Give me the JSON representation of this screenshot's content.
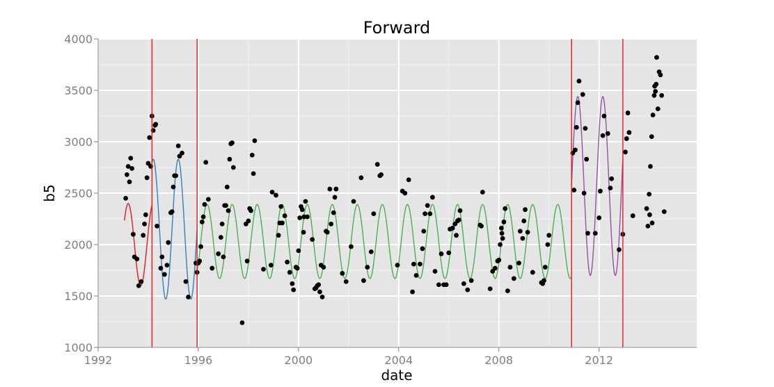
{
  "chart_data": {
    "type": "scatter",
    "title": "Forward",
    "xlabel": "date",
    "ylabel": "b5",
    "xlim": [
      1992,
      2015.9
    ],
    "ylim": [
      1000,
      4000
    ],
    "xticks": [
      "1992",
      "1996",
      "2000",
      "2004",
      "2008",
      "2012"
    ],
    "yticks": [
      "1000",
      "1500",
      "2000",
      "2500",
      "3000",
      "3500",
      "4000"
    ],
    "grid": true,
    "background": "#e5e5e5",
    "colors": {
      "points": "#000000",
      "breaks": "#e41a1c",
      "series": [
        "#e41a1c",
        "#377eb8",
        "#4daf4a",
        "#984ea3"
      ]
    },
    "breakpoints": [
      1994.15,
      1995.95,
      2010.9,
      2012.95
    ],
    "fitted_segments": [
      {
        "start": 1993.05,
        "end": 1994.15,
        "mean": 2000,
        "amp": 400,
        "peak": 1994.2
      },
      {
        "start": 1994.15,
        "end": 1995.95,
        "mean": 2150,
        "amp": 680,
        "peak": 1994.2
      },
      {
        "start": 1995.95,
        "end": 2010.9,
        "mean": 2030,
        "amp": 360,
        "peak": 1996.35
      },
      {
        "start": 2010.9,
        "end": 2012.95,
        "mean": 2570,
        "amp": 870,
        "peak": 2011.15
      }
    ],
    "points": [
      [
        1993.1,
        2450
      ],
      [
        1993.15,
        2680
      ],
      [
        1993.2,
        2760
      ],
      [
        1993.25,
        2610
      ],
      [
        1993.3,
        2840
      ],
      [
        1993.35,
        2740
      ],
      [
        1993.4,
        2100
      ],
      [
        1993.45,
        1880
      ],
      [
        1993.55,
        1860
      ],
      [
        1993.62,
        1600
      ],
      [
        1993.72,
        1640
      ],
      [
        1993.8,
        2090
      ],
      [
        1993.85,
        2200
      ],
      [
        1993.9,
        2290
      ],
      [
        1993.95,
        2650
      ],
      [
        1994.0,
        2790
      ],
      [
        1994.05,
        3040
      ],
      [
        1994.1,
        2760
      ],
      [
        1994.15,
        3250
      ],
      [
        1994.2,
        3110
      ],
      [
        1994.27,
        3160
      ],
      [
        1994.3,
        3170
      ],
      [
        1994.35,
        2180
      ],
      [
        1994.5,
        1770
      ],
      [
        1994.55,
        1880
      ],
      [
        1994.65,
        1710
      ],
      [
        1994.75,
        1800
      ],
      [
        1994.8,
        2020
      ],
      [
        1994.9,
        2310
      ],
      [
        1994.95,
        2320
      ],
      [
        1995.0,
        2560
      ],
      [
        1995.05,
        2670
      ],
      [
        1995.1,
        2670
      ],
      [
        1995.2,
        2960
      ],
      [
        1995.25,
        2860
      ],
      [
        1995.35,
        2890
      ],
      [
        1995.5,
        1640
      ],
      [
        1995.6,
        1490
      ],
      [
        1995.9,
        1820
      ],
      [
        1995.95,
        1730
      ],
      [
        1996.0,
        1820
      ],
      [
        1996.05,
        1840
      ],
      [
        1996.1,
        1980
      ],
      [
        1996.15,
        2220
      ],
      [
        1996.2,
        2270
      ],
      [
        1996.25,
        2390
      ],
      [
        1996.3,
        2800
      ],
      [
        1996.4,
        2440
      ],
      [
        1996.55,
        1770
      ],
      [
        1996.8,
        1910
      ],
      [
        1996.9,
        2070
      ],
      [
        1996.95,
        2200
      ],
      [
        1997.0,
        1880
      ],
      [
        1997.05,
        2380
      ],
      [
        1997.1,
        2380
      ],
      [
        1997.15,
        2560
      ],
      [
        1997.2,
        2330
      ],
      [
        1997.25,
        2830
      ],
      [
        1997.3,
        2980
      ],
      [
        1997.35,
        2990
      ],
      [
        1997.4,
        2750
      ],
      [
        1997.75,
        1240
      ],
      [
        1997.9,
        2200
      ],
      [
        1997.95,
        1840
      ],
      [
        1998.0,
        2230
      ],
      [
        1998.05,
        2350
      ],
      [
        1998.1,
        2330
      ],
      [
        1998.15,
        2870
      ],
      [
        1998.2,
        2690
      ],
      [
        1998.25,
        3010
      ],
      [
        1998.6,
        1760
      ],
      [
        1998.9,
        1800
      ],
      [
        1998.95,
        2510
      ],
      [
        1999.1,
        2480
      ],
      [
        1999.2,
        2090
      ],
      [
        1999.25,
        2210
      ],
      [
        1999.3,
        2370
      ],
      [
        1999.35,
        2210
      ],
      [
        1999.45,
        2280
      ],
      [
        1999.55,
        1830
      ],
      [
        1999.65,
        1730
      ],
      [
        1999.75,
        1620
      ],
      [
        1999.8,
        1560
      ],
      [
        1999.9,
        1780
      ],
      [
        1999.95,
        1770
      ],
      [
        2000.0,
        1940
      ],
      [
        2000.05,
        2260
      ],
      [
        2000.1,
        2370
      ],
      [
        2000.15,
        2340
      ],
      [
        2000.2,
        2120
      ],
      [
        2000.22,
        2270
      ],
      [
        2000.28,
        2420
      ],
      [
        2000.35,
        2270
      ],
      [
        2000.55,
        2050
      ],
      [
        2000.65,
        1570
      ],
      [
        2000.7,
        1580
      ],
      [
        2000.75,
        1600
      ],
      [
        2000.8,
        1610
      ],
      [
        2000.85,
        1540
      ],
      [
        2000.9,
        1800
      ],
      [
        2000.95,
        1490
      ],
      [
        2001.0,
        1780
      ],
      [
        2001.1,
        2130
      ],
      [
        2001.15,
        2120
      ],
      [
        2001.25,
        2540
      ],
      [
        2001.3,
        2200
      ],
      [
        2001.4,
        2310
      ],
      [
        2001.45,
        2460
      ],
      [
        2001.5,
        2540
      ],
      [
        2001.75,
        1720
      ],
      [
        2001.9,
        1640
      ],
      [
        2002.1,
        1980
      ],
      [
        2002.2,
        2420
      ],
      [
        2002.5,
        2650
      ],
      [
        2002.6,
        1650
      ],
      [
        2002.75,
        1780
      ],
      [
        2002.9,
        1930
      ],
      [
        2003.0,
        2300
      ],
      [
        2003.15,
        2780
      ],
      [
        2003.25,
        2670
      ],
      [
        2003.3,
        2680
      ],
      [
        2003.95,
        1800
      ],
      [
        2004.15,
        2520
      ],
      [
        2004.25,
        2500
      ],
      [
        2004.4,
        2630
      ],
      [
        2004.55,
        1540
      ],
      [
        2004.6,
        1810
      ],
      [
        2004.7,
        1700
      ],
      [
        2004.85,
        1810
      ],
      [
        2004.95,
        1960
      ],
      [
        2005.0,
        2130
      ],
      [
        2005.05,
        2300
      ],
      [
        2005.15,
        2380
      ],
      [
        2005.25,
        2300
      ],
      [
        2005.35,
        2460
      ],
      [
        2005.45,
        1740
      ],
      [
        2005.6,
        1610
      ],
      [
        2005.7,
        1910
      ],
      [
        2005.8,
        1610
      ],
      [
        2005.9,
        1610
      ],
      [
        2006.0,
        1920
      ],
      [
        2006.05,
        2150
      ],
      [
        2006.15,
        2160
      ],
      [
        2006.25,
        2200
      ],
      [
        2006.3,
        2090
      ],
      [
        2006.35,
        2230
      ],
      [
        2006.4,
        2240
      ],
      [
        2006.45,
        2330
      ],
      [
        2006.6,
        1620
      ],
      [
        2006.75,
        1560
      ],
      [
        2006.9,
        1650
      ],
      [
        2007.25,
        2190
      ],
      [
        2007.3,
        2180
      ],
      [
        2007.35,
        2510
      ],
      [
        2007.65,
        1570
      ],
      [
        2007.75,
        1740
      ],
      [
        2007.85,
        1770
      ],
      [
        2007.95,
        1840
      ],
      [
        2008.0,
        1850
      ],
      [
        2008.05,
        2000
      ],
      [
        2008.1,
        2160
      ],
      [
        2008.12,
        2110
      ],
      [
        2008.15,
        2060
      ],
      [
        2008.2,
        2220
      ],
      [
        2008.25,
        2350
      ],
      [
        2008.35,
        1550
      ],
      [
        2008.45,
        1780
      ],
      [
        2008.6,
        1670
      ],
      [
        2008.8,
        1820
      ],
      [
        2008.85,
        2130
      ],
      [
        2008.95,
        2060
      ],
      [
        2009.0,
        2230
      ],
      [
        2009.05,
        2340
      ],
      [
        2009.15,
        2120
      ],
      [
        2009.35,
        1730
      ],
      [
        2009.7,
        1630
      ],
      [
        2009.75,
        1620
      ],
      [
        2009.8,
        1650
      ],
      [
        2009.85,
        1780
      ],
      [
        2009.95,
        2000
      ],
      [
        2010.0,
        2090
      ],
      [
        2010.95,
        2890
      ],
      [
        2011.0,
        2530
      ],
      [
        2011.05,
        2920
      ],
      [
        2011.1,
        3140
      ],
      [
        2011.15,
        3380
      ],
      [
        2011.2,
        3590
      ],
      [
        2011.35,
        3460
      ],
      [
        2011.4,
        2500
      ],
      [
        2011.45,
        3130
      ],
      [
        2011.5,
        2830
      ],
      [
        2011.55,
        2110
      ],
      [
        2011.85,
        2110
      ],
      [
        2012.0,
        2260
      ],
      [
        2012.05,
        2520
      ],
      [
        2012.15,
        3060
      ],
      [
        2012.2,
        3250
      ],
      [
        2012.35,
        3080
      ],
      [
        2012.45,
        2550
      ],
      [
        2012.5,
        2640
      ],
      [
        2012.8,
        1950
      ],
      [
        2012.95,
        2100
      ],
      [
        2013.05,
        2900
      ],
      [
        2013.1,
        3030
      ],
      [
        2013.15,
        3280
      ],
      [
        2013.2,
        3090
      ],
      [
        2013.35,
        2280
      ],
      [
        2013.9,
        2350
      ],
      [
        2013.95,
        2180
      ],
      [
        2014.0,
        2490
      ],
      [
        2014.02,
        2290
      ],
      [
        2014.05,
        2760
      ],
      [
        2014.1,
        3050
      ],
      [
        2014.12,
        2210
      ],
      [
        2014.15,
        3260
      ],
      [
        2014.2,
        3450
      ],
      [
        2014.22,
        3540
      ],
      [
        2014.25,
        3490
      ],
      [
        2014.28,
        3560
      ],
      [
        2014.3,
        3820
      ],
      [
        2014.35,
        3320
      ],
      [
        2014.4,
        3680
      ],
      [
        2014.45,
        3650
      ],
      [
        2014.5,
        3450
      ],
      [
        2014.6,
        2320
      ]
    ]
  }
}
